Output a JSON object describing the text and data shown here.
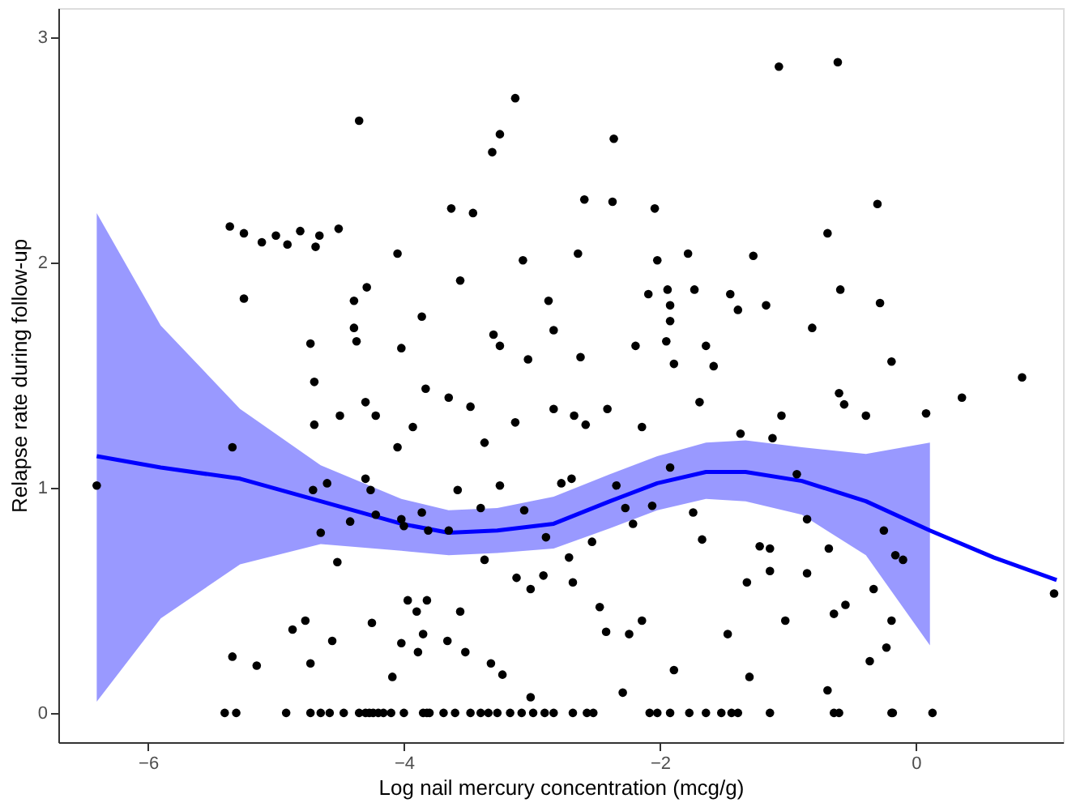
{
  "chart_data": {
    "type": "scatter",
    "xlabel": "Log nail mercury concentration (mcg/g)",
    "ylabel": "Relapse rate during follow-up",
    "xlim": [
      -6.7,
      1.15
    ],
    "ylim": [
      -0.13,
      3.13
    ],
    "xticks": [
      -6,
      -4,
      -2,
      0
    ],
    "yticks": [
      0,
      1,
      2,
      3
    ],
    "grid": false,
    "series": [
      {
        "color": "#000000",
        "marker": "circle",
        "x": [
          -1.07,
          -0.61,
          -3.13,
          -4.35,
          -3.25,
          -3.31,
          -2.36,
          -2.59,
          -2.37,
          -3.63,
          -3.46,
          -0.3,
          -5.36,
          -5.25,
          -5.0,
          -4.81,
          -4.66,
          -4.51,
          -5.11,
          -4.91,
          -4.69,
          -2.04,
          -1.78,
          -1.27,
          -2.02,
          -4.05,
          -2.64,
          -0.69,
          -5.25,
          -4.29,
          -3.56,
          -3.07,
          -2.87,
          -1.94,
          -1.73,
          -1.45,
          -1.39,
          -1.17,
          -0.59,
          -0.28,
          -2.09,
          -0.81,
          -4.39,
          -4.37,
          -4.39,
          -4.73,
          -4.02,
          -3.86,
          -2.83,
          -3.3,
          -3.25,
          -3.03,
          -2.62,
          -2.19,
          -1.95,
          -1.64,
          -1.89,
          -1.58,
          -1.92,
          -1.92,
          -0.19,
          0.36,
          -0.6,
          -0.56,
          -1.05,
          0.08,
          0.83,
          -4.7,
          -4.5,
          -4.7,
          -4.3,
          -4.22,
          -3.83,
          -3.65,
          -3.93,
          -3.48,
          -2.83,
          -2.67,
          -2.41,
          -2.58,
          -3.37,
          -3.13,
          -2.14,
          -1.69,
          -1.37,
          -1.12,
          -0.39,
          -5.34,
          -6.4,
          -4.05,
          -4.71,
          -4.6,
          -4.3,
          -4.26,
          -4.22,
          -4.02,
          -4.0,
          -4.42,
          -4.65,
          -4.52,
          -3.81,
          -3.58,
          -3.4,
          -3.25,
          -3.06,
          -2.89,
          -2.77,
          -2.69,
          -2.34,
          -2.27,
          -2.06,
          -2.21,
          -1.92,
          -1.74,
          -1.67,
          -1.22,
          -1.14,
          -0.93,
          -0.85,
          -0.25,
          -0.16,
          -0.1,
          -0.68,
          -0.33,
          -3.65,
          -3.37,
          -2.71,
          -2.53,
          -3.86,
          -4.77,
          -4.56,
          -4.25,
          -3.9,
          -3.97,
          -3.82,
          -4.02,
          -3.85,
          -3.89,
          -3.56,
          -3.66,
          -3.52,
          -3.32,
          -3.23,
          -3.12,
          -3.01,
          -2.91,
          -2.68,
          -2.47,
          -2.42,
          -2.24,
          -2.14,
          -1.89,
          -1.47,
          -1.32,
          -1.14,
          -1.02,
          -0.85,
          -0.64,
          -0.55,
          -0.36,
          -0.23,
          -0.19,
          -4.87,
          -4.73,
          -5.15,
          -5.34,
          -3.01,
          -4.09,
          -2.29,
          -1.3,
          -0.69,
          1.08,
          -5.4,
          -5.31,
          -4.92,
          -4.73,
          -4.65,
          -4.58,
          -4.47,
          -4.35,
          -4.3,
          -4.27,
          -4.24,
          -4.2,
          -4.16,
          -4.1,
          -4.0,
          -3.85,
          -3.82,
          -3.8,
          -3.69,
          -3.6,
          -3.48,
          -3.4,
          -3.34,
          -3.27,
          -3.17,
          -3.08,
          -2.99,
          -2.9,
          -2.83,
          -2.68,
          -2.57,
          -2.52,
          -2.08,
          -2.02,
          -1.92,
          -1.77,
          -1.64,
          -1.52,
          -1.44,
          -1.39,
          -1.14,
          -0.64,
          -0.6,
          -0.19,
          -0.18,
          0.13
        ],
        "values": [
          2.87,
          2.89,
          2.73,
          2.63,
          2.57,
          2.49,
          2.55,
          2.28,
          2.27,
          2.24,
          2.22,
          2.26,
          2.16,
          2.13,
          2.12,
          2.14,
          2.12,
          2.15,
          2.09,
          2.08,
          2.07,
          2.24,
          2.04,
          2.03,
          2.01,
          2.04,
          2.04,
          2.13,
          1.84,
          1.89,
          1.92,
          2.01,
          1.83,
          1.88,
          1.88,
          1.86,
          1.79,
          1.81,
          1.88,
          1.82,
          1.86,
          1.71,
          1.83,
          1.65,
          1.71,
          1.64,
          1.62,
          1.76,
          1.7,
          1.68,
          1.63,
          1.57,
          1.58,
          1.63,
          1.65,
          1.63,
          1.55,
          1.54,
          1.74,
          1.81,
          1.56,
          1.4,
          1.42,
          1.37,
          1.32,
          1.33,
          1.49,
          1.47,
          1.32,
          1.28,
          1.38,
          1.32,
          1.44,
          1.4,
          1.27,
          1.36,
          1.35,
          1.32,
          1.35,
          1.28,
          1.2,
          1.29,
          1.27,
          1.38,
          1.24,
          1.22,
          1.32,
          1.18,
          1.01,
          1.18,
          0.99,
          1.02,
          1.04,
          0.99,
          0.88,
          0.86,
          0.83,
          0.85,
          0.8,
          0.67,
          0.81,
          0.99,
          0.91,
          1.01,
          0.9,
          0.78,
          1.02,
          1.04,
          1.01,
          0.91,
          0.92,
          0.84,
          1.09,
          0.89,
          0.77,
          0.74,
          0.73,
          1.06,
          0.86,
          0.81,
          0.7,
          0.68,
          0.73,
          0.55,
          0.81,
          0.68,
          0.69,
          0.76,
          0.89,
          0.41,
          0.32,
          0.4,
          0.45,
          0.5,
          0.5,
          0.31,
          0.35,
          0.27,
          0.45,
          0.32,
          0.27,
          0.22,
          0.17,
          0.6,
          0.55,
          0.61,
          0.58,
          0.47,
          0.36,
          0.35,
          0.41,
          0.19,
          0.35,
          0.58,
          0.63,
          0.41,
          0.62,
          0.44,
          0.48,
          0.23,
          0.29,
          0.41,
          0.37,
          0.22,
          0.21,
          0.25,
          0.07,
          0.16,
          0.09,
          0.16,
          0.1,
          0.53,
          0,
          0,
          0,
          0,
          0,
          0,
          0,
          0,
          0,
          0,
          0,
          0,
          0,
          0,
          0,
          0,
          0,
          0,
          0,
          0,
          0,
          0,
          0,
          0,
          0,
          0,
          0,
          0,
          0,
          0,
          0,
          0,
          0,
          0,
          0,
          0,
          0,
          0,
          0,
          0,
          0,
          0,
          0,
          0,
          0,
          0
        ]
      },
      {
        "type": "line",
        "color": "#0000ff",
        "line_style": "solid",
        "x": [
          -6.4,
          -5.9,
          -5.28,
          -4.65,
          -4.02,
          -3.65,
          -3.27,
          -2.83,
          -2.39,
          -2.02,
          -1.64,
          -1.33,
          -0.89,
          -0.39,
          0.11,
          0.61,
          1.1
        ],
        "values": [
          1.14,
          1.09,
          1.04,
          0.94,
          0.84,
          0.8,
          0.81,
          0.84,
          0.94,
          1.02,
          1.07,
          1.07,
          1.03,
          0.94,
          0.81,
          0.69,
          0.59
        ],
        "lower": [
          0.05,
          0.42,
          0.66,
          0.75,
          0.72,
          0.7,
          0.71,
          0.73,
          0.82,
          0.9,
          0.95,
          0.94,
          0.88,
          0.7,
          0.3,
          null,
          null
        ],
        "upper": [
          2.22,
          1.72,
          1.35,
          1.1,
          0.95,
          0.9,
          0.91,
          0.96,
          1.06,
          1.14,
          1.2,
          1.21,
          1.18,
          1.15,
          1.2,
          null,
          null
        ]
      }
    ]
  }
}
